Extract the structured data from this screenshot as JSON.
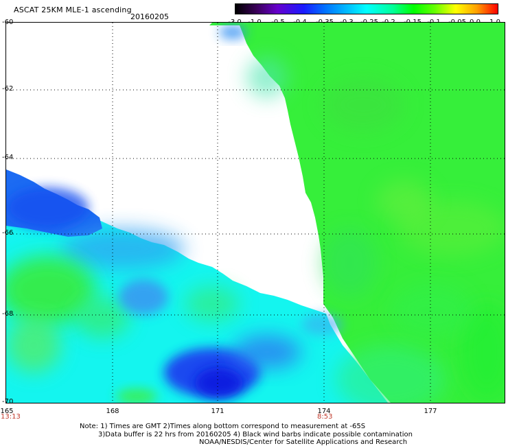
{
  "header": {
    "title": "ASCAT 25KM MLE-1 ascending",
    "date": "20160205"
  },
  "colorbar": {
    "ticks": [
      "-3.0",
      "-1.0",
      "-0.5",
      "-0.4",
      "-0.35",
      "-0.3",
      "-0.25",
      "-0.2",
      "-0.15",
      "-0.1",
      "-0.05",
      "0.0",
      "1.0"
    ],
    "colors": [
      "#000000",
      "#6600cc",
      "#1a1aff",
      "#0070ff",
      "#00c8ff",
      "#00ffff",
      "#00ff99",
      "#00ff00",
      "#66ff00",
      "#ffff00",
      "#ffa000",
      "#ff0000"
    ]
  },
  "axes": {
    "y_labels": [
      "-60",
      "-62",
      "-64",
      "-66",
      "-68",
      "-70"
    ],
    "x_labels": [
      "165",
      "168",
      "171",
      "174",
      "177"
    ]
  },
  "pass_times": {
    "left": "13:13",
    "center": "8:53"
  },
  "notes": {
    "line1": "Note: 1) Times are GMT 2)Times along bottom correspond to measurement at -65S",
    "line2": "3)Data buffer is 22 hrs from 20160205 4) Black wind barbs indicate possible contamination",
    "line3": "NOAA/NESDIS/Center for Satellite Applications and Research"
  }
}
